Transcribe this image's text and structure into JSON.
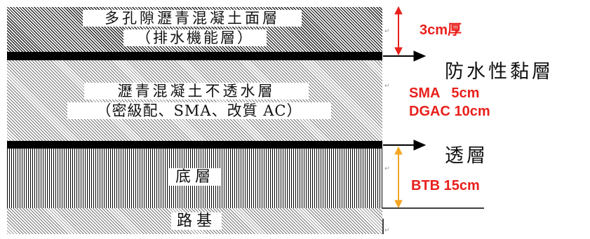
{
  "layers": {
    "porous_asphalt": {
      "line1": "多孔隙瀝青混凝土面層",
      "line2": "（排水機能層）"
    },
    "impermeable_asphalt": {
      "line1": "瀝青混凝土不透水層",
      "line2": "（密級配、SMA、改質 AC）"
    },
    "base": {
      "label": "底層"
    },
    "subgrade": {
      "label": "路基"
    }
  },
  "annotations": {
    "tack_coat": "防水性黏層",
    "prime_coat": "透層",
    "thickness_top": "3cm厚",
    "thickness_sma": "SMA   5cm",
    "thickness_dgac": "DGAC 10cm",
    "thickness_btb": "BTB 15cm"
  },
  "colors": {
    "red_dim": "#e8201c",
    "orange_dim": "#f5a623",
    "text": "#111111"
  }
}
